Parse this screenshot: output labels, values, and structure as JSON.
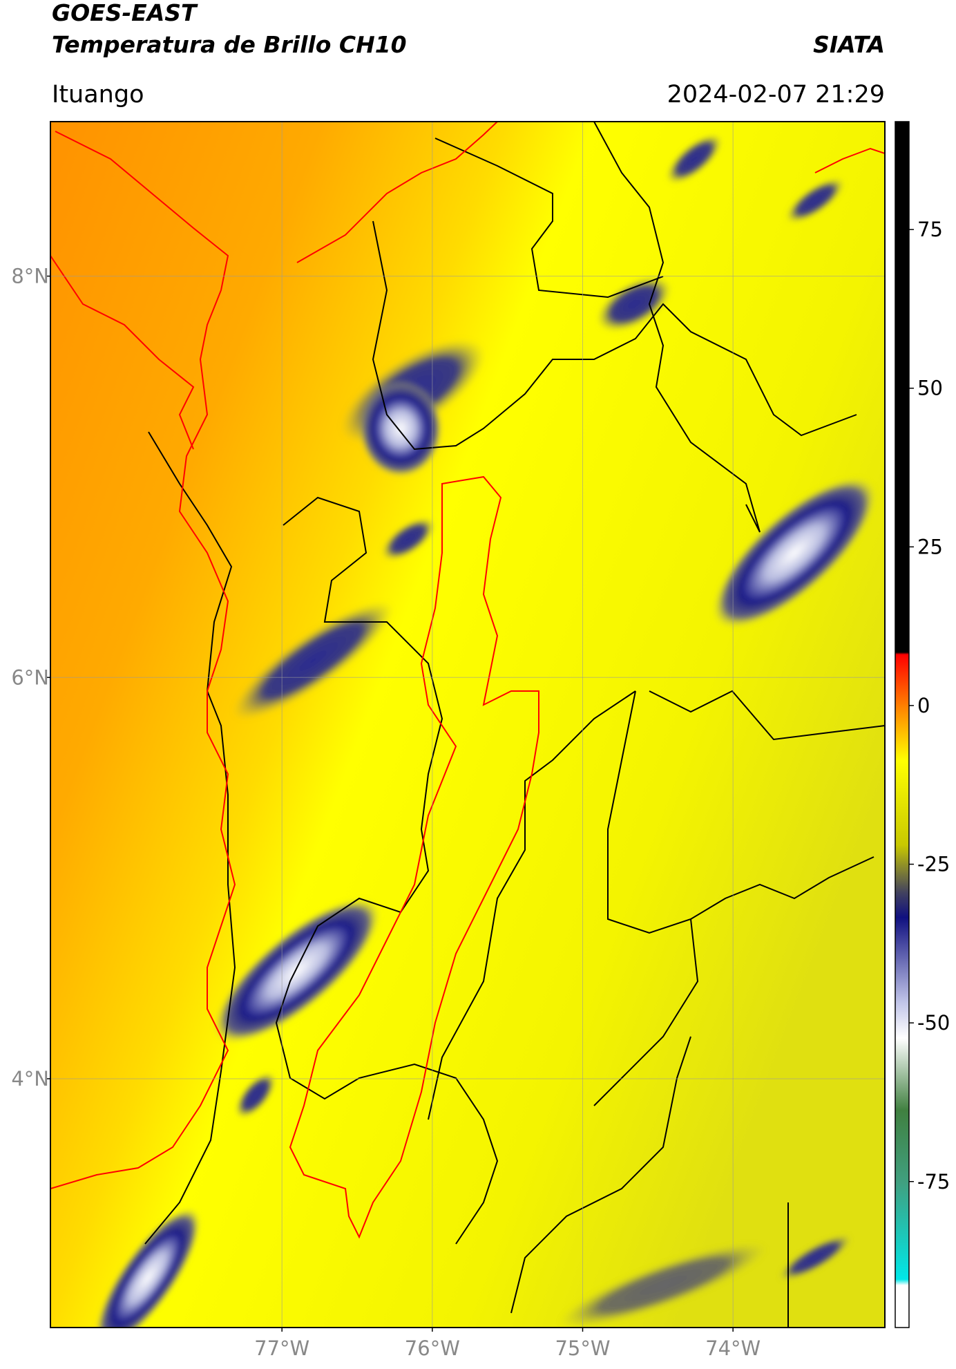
{
  "header": {
    "title": "GOES-EAST",
    "subtitle": "Temperatura de Brillo CH10",
    "source": "SIATA",
    "place": "Ituango",
    "datetime": "2024-02-07 21:29"
  },
  "map": {
    "xlim": [
      -78.54,
      -72.99
    ],
    "ylim": [
      2.76,
      8.77
    ],
    "lat_ticks": [
      {
        "value": 8,
        "label": "8°N"
      },
      {
        "value": 6,
        "label": "6°N"
      },
      {
        "value": 4,
        "label": "4°N"
      }
    ],
    "lon_ticks": [
      {
        "value": -77,
        "label": "77°W"
      },
      {
        "value": -76,
        "label": "76°W"
      },
      {
        "value": -75,
        "label": "75°W"
      },
      {
        "value": -74,
        "label": "74°W"
      }
    ],
    "grid": true
  },
  "colorbar": {
    "lim": [
      -98,
      92
    ],
    "ticks": [
      75,
      50,
      25,
      0,
      -25,
      -50,
      -75
    ]
  }
}
